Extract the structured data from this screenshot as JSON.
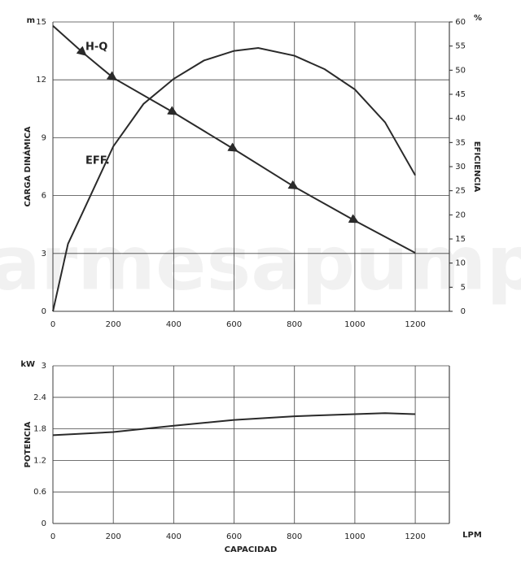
{
  "watermark": "parmesapumps",
  "chart_data": [
    {
      "type": "line",
      "y_label": "CARGA DINÁMICA",
      "y_unit": "m",
      "y2_label": "EFICIENCIA",
      "y2_unit": "%",
      "xlim": [
        0,
        1313
      ],
      "xticks": [
        0,
        200,
        400,
        600,
        800,
        1000,
        1200
      ],
      "ylim": [
        0,
        15
      ],
      "yticks": [
        0,
        3,
        6,
        9,
        12,
        15
      ],
      "y2lim": [
        0,
        60
      ],
      "y2ticks": [
        0,
        5,
        10,
        15,
        20,
        25,
        30,
        35,
        40,
        45,
        50,
        55,
        60
      ],
      "grid": true,
      "series": [
        {
          "name": "H-Q",
          "color": "#2a2a2a",
          "x": [
            0,
            100,
            200,
            400,
            600,
            800,
            1000,
            1200
          ],
          "values": [
            14.8,
            13.4,
            12.1,
            10.3,
            8.4,
            6.45,
            4.7,
            3.03
          ]
        },
        {
          "name": "EFF.",
          "color": "#2a2a2a",
          "axis": "y2",
          "x": [
            0,
            50,
            100,
            200,
            300,
            400,
            500,
            600,
            680,
            800,
            900,
            1000,
            1100,
            1200
          ],
          "values": [
            0,
            14,
            20.7,
            34.2,
            43,
            48.2,
            52,
            54,
            54.6,
            53,
            50.2,
            46,
            39.2,
            28.2
          ]
        }
      ]
    },
    {
      "type": "line",
      "y_label": "POTENCIA",
      "y_unit": "kW",
      "x_label": "CAPACIDAD",
      "x_unit": "LPM",
      "xlim": [
        0,
        1313
      ],
      "xticks": [
        0,
        200,
        400,
        600,
        800,
        1000,
        1200
      ],
      "ylim": [
        0,
        3
      ],
      "yticks": [
        0,
        0.6,
        1.2,
        1.8,
        2.4,
        3
      ],
      "grid": true,
      "series": [
        {
          "name": null,
          "color": "#2a2a2a",
          "x": [
            0,
            200,
            400,
            600,
            800,
            1000,
            1100,
            1200
          ],
          "values": [
            1.68,
            1.74,
            1.86,
            1.97,
            2.04,
            2.08,
            2.1,
            2.08
          ]
        }
      ]
    }
  ]
}
